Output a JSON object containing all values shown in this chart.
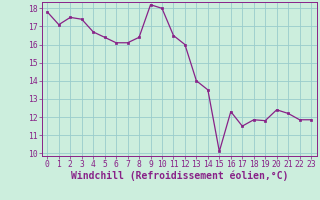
{
  "x": [
    0,
    1,
    2,
    3,
    4,
    5,
    6,
    7,
    8,
    9,
    10,
    11,
    12,
    13,
    14,
    15,
    16,
    17,
    18,
    19,
    20,
    21,
    22,
    23
  ],
  "y": [
    17.8,
    17.1,
    17.5,
    17.4,
    16.7,
    16.4,
    16.1,
    16.1,
    16.4,
    18.2,
    18.0,
    16.5,
    16.0,
    14.0,
    13.5,
    10.1,
    12.3,
    11.5,
    11.85,
    11.8,
    12.4,
    12.2,
    11.85,
    11.85
  ],
  "line_color": "#882288",
  "marker_color": "#882288",
  "bg_color": "#cceedd",
  "grid_color": "#99cccc",
  "xlabel": "Windchill (Refroidissement éolien,°C)",
  "ylim": [
    10,
    18
  ],
  "xlim": [
    -0.5,
    23.5
  ],
  "yticks": [
    10,
    11,
    12,
    13,
    14,
    15,
    16,
    17,
    18
  ],
  "xticks": [
    0,
    1,
    2,
    3,
    4,
    5,
    6,
    7,
    8,
    9,
    10,
    11,
    12,
    13,
    14,
    15,
    16,
    17,
    18,
    19,
    20,
    21,
    22,
    23
  ],
  "tick_fontsize": 5.8,
  "xlabel_fontsize": 7.0,
  "label_color": "#882288"
}
